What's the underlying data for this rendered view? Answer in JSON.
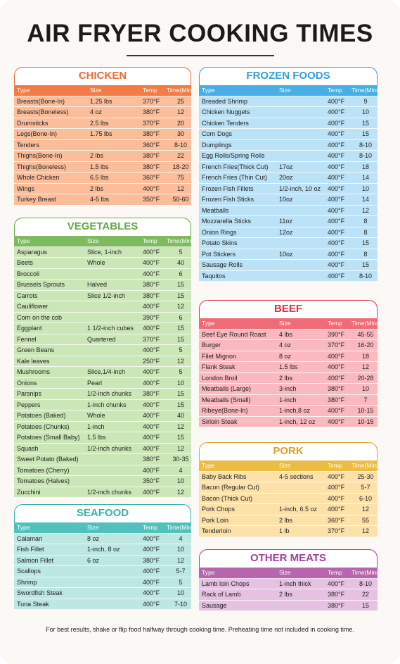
{
  "title": "AIR FRYER COOKING TIMES",
  "sections": [
    {
      "name": "CHICKEN",
      "header": [
        "Type",
        "Size",
        "Temp",
        "Time(Mins)"
      ],
      "rows": [
        [
          "Breasts(Bone-In)",
          "1.25 lbs",
          "370°F",
          "25"
        ],
        [
          "Breasts(Boneless)",
          "4 oz",
          "380°F",
          "12"
        ],
        [
          "Drumsticks",
          "2.5 lbs",
          "370°F",
          "20"
        ],
        [
          "Legs(Bone-In)",
          "1.75 lbs",
          "380°F",
          "30"
        ],
        [
          "Tenders",
          null,
          "360°F",
          "8-10"
        ],
        [
          "Thighs(Bone-In)",
          "2 lbs",
          "380°F",
          "22"
        ],
        [
          "Thighs(Boneless)",
          "1.5 lbs",
          "380°F",
          "18-20"
        ],
        [
          "Whole Chicken",
          "6.5 lbs",
          "360°F",
          "75"
        ],
        [
          "Wings",
          "2 lbs",
          "400°F",
          "12"
        ],
        [
          "Turkey Breast",
          "4-5 lbs",
          "350°F",
          "50-60"
        ]
      ]
    },
    {
      "name": "VEGETABLES",
      "header": [
        "Type",
        "Size",
        "Temp",
        "Time(Mins)"
      ],
      "rows": [
        [
          "Asparagus",
          "Slice, 1-inch",
          "400°F",
          "5"
        ],
        [
          "Beets",
          "Whole",
          "400°F",
          "40"
        ],
        [
          "Broccoli",
          null,
          "400°F",
          "6"
        ],
        [
          "Brussels Sprouts",
          "Halved",
          "380°F",
          "15"
        ],
        [
          "Carrots",
          "Slice 1/2-inch",
          "380°F",
          "15"
        ],
        [
          "Cauliflower",
          null,
          "400°F",
          "12"
        ],
        [
          "Corn on the cob",
          null,
          "390°F",
          "6"
        ],
        [
          "Eggplant",
          "1 1/2-inch cubes",
          "400°F",
          "15"
        ],
        [
          "Fennel",
          "Quartered",
          "370°F",
          "15"
        ],
        [
          "Green Beans",
          null,
          "400°F",
          "5"
        ],
        [
          "Kale leaves",
          null,
          "250°F",
          "12"
        ],
        [
          "Mushrooms",
          "Slice,1/4-inch",
          "400°F",
          "5"
        ],
        [
          "Onions",
          "Pearl",
          "400°F",
          "10"
        ],
        [
          "Parsnips",
          "1/2-inch chunks",
          "380°F",
          "15"
        ],
        [
          "Peppers",
          "1-inch chunks",
          "400°F",
          "15"
        ],
        [
          "Potatoes (Baked)",
          "Whole",
          "400°F",
          "40"
        ],
        [
          "Potatoes (Chunks)",
          "1-inch",
          "400°F",
          "12"
        ],
        [
          "Potatoes (Small Baby)",
          "1.5 lbs",
          "400°F",
          "15"
        ],
        [
          "Squash",
          "1/2-inch chunks",
          "400°F",
          "12"
        ],
        [
          "Sweet Potato (Baked)",
          null,
          "380°F",
          "30-35"
        ],
        [
          "Tomatoes (Cherry)",
          null,
          "400°F",
          "4"
        ],
        [
          "Tomatoes (Halves)",
          null,
          "350°F",
          "10"
        ],
        [
          "Zucchini",
          "1/2-inch chunks",
          "400°F",
          "12"
        ]
      ]
    },
    {
      "name": "SEAFOOD",
      "header": [
        "Type",
        "Size",
        "Temp",
        "Time(Mins)"
      ],
      "rows": [
        [
          "Calamari",
          "8 oz",
          "400°F",
          "4"
        ],
        [
          "Fish Fillet",
          "1-inch, 8 oz",
          "400°F",
          "10"
        ],
        [
          "Salmon Fillet",
          "6 oz",
          "380°F",
          "12"
        ],
        [
          "Scallops",
          null,
          "400°F",
          "5-7"
        ],
        [
          "Shrimp",
          null,
          "400°F",
          "5"
        ],
        [
          "Swordfish Steak",
          null,
          "400°F",
          "10"
        ],
        [
          "Tuna Steak",
          null,
          "400°F",
          "7-10"
        ]
      ]
    },
    {
      "name": "FROZEN FOODS",
      "header": [
        "Type",
        "Size",
        "Temp",
        "Time(Mins)"
      ],
      "rows": [
        [
          "Breaded Shrimp",
          null,
          "400°F",
          "9"
        ],
        [
          "Chicken Nuggets",
          null,
          "400°F",
          "10"
        ],
        [
          "Chicken Tenders",
          null,
          "400°F",
          "15"
        ],
        [
          "Corn Dogs",
          null,
          "400°F",
          "15"
        ],
        [
          "Dumplings",
          null,
          "400°F",
          "8-10"
        ],
        [
          "Egg Rolls/Spring Rolls",
          null,
          "400°F",
          "8-10"
        ],
        [
          "French Fries(Thick Cut)",
          "17oz",
          "400°F",
          "18"
        ],
        [
          "French Fries (Thin Cut)",
          "20oz",
          "400°F",
          "14"
        ],
        [
          "Frozen Fish Fillets",
          "1/2-inch, 10 oz",
          "400°F",
          "10"
        ],
        [
          "Frozen Fish Sticks",
          "10oz",
          "400°F",
          "14"
        ],
        [
          "Meatballs",
          null,
          "400°F",
          "12"
        ],
        [
          "Mozzarella Sticks",
          "11oz",
          "400°F",
          "8"
        ],
        [
          "Onion Rings",
          "12oz",
          "400°F",
          "8"
        ],
        [
          "Potato Skins",
          null,
          "400°F",
          "15"
        ],
        [
          "Pot Stickers",
          "10oz",
          "400°F",
          "8"
        ],
        [
          "Sausage Rolls",
          null,
          "400°F",
          "15"
        ],
        [
          "Taquitos",
          null,
          "400°F",
          "8-10"
        ]
      ]
    },
    {
      "name": "BEEF",
      "header": [
        "Type",
        "Size",
        "Temp",
        "Time(Mins)"
      ],
      "rows": [
        [
          "Beef Eye Round Roast",
          "4 lbs",
          "390°F",
          "45-55"
        ],
        [
          "Burger",
          "4 oz",
          "370°F",
          "16-20"
        ],
        [
          "Filet Mignon",
          "8 oz",
          "400°F",
          "18"
        ],
        [
          "Flank Steak",
          "1.5 lbs",
          "400°F",
          "12"
        ],
        [
          "London Broil",
          "2 lbs",
          "400°F",
          "20-28"
        ],
        [
          "Meatballs (Large)",
          "3-inch",
          "380°F",
          "10"
        ],
        [
          "Meatballs (Small)",
          "1-inch",
          "380°F",
          "7"
        ],
        [
          "Ribeye(Bone-In)",
          "1-inch,8 oz",
          "400°F",
          "10-15"
        ],
        [
          "Sirloin Steak",
          "1-inch, 12 oz",
          "400°F",
          "10-15"
        ]
      ]
    },
    {
      "name": "PORK",
      "header": [
        "Type",
        "Size",
        "Temp",
        "Time(Mins)"
      ],
      "rows": [
        [
          "Baby Back Ribs",
          "4-5 sections",
          "400°F",
          "25-30"
        ],
        [
          "Bacon (Regular Cut)",
          null,
          "400°F",
          "5-7"
        ],
        [
          "Bacon (Thick Cut)",
          null,
          "400°F",
          "6-10"
        ],
        [
          "Pork Chops",
          "1-inch, 6.5 oz",
          "400°F",
          "12"
        ],
        [
          "Pork Loin",
          "2 lbs",
          "360°F",
          "55"
        ],
        [
          "Tenderloin",
          "1 lb",
          "370°F",
          "12"
        ]
      ]
    },
    {
      "name": "OTHER MEATS",
      "header": [
        "Type",
        "Size",
        "Temp",
        "Time(Mins)"
      ],
      "rows": [
        [
          "Lamb loin Chops",
          "1-inch thick",
          "400°F",
          "8-10"
        ],
        [
          "Rack of Lamb",
          "2 lbs",
          "380°F",
          "22"
        ],
        [
          "Sausage",
          null,
          "380°F",
          "15"
        ]
      ]
    }
  ],
  "footer": "For best results, shake or flip food halfway through cooking time. Preheating time not included in cooking time."
}
